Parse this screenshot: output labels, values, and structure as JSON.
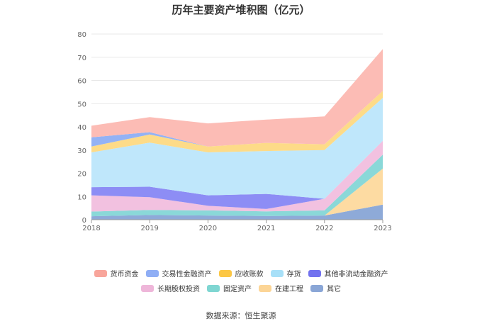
{
  "page": {
    "title": "历年主要资产堆积图（亿元）",
    "source": "数据来源：恒生聚源"
  },
  "chart_data": {
    "type": "area",
    "stacked": true,
    "title": "历年主要资产堆积图（亿元）",
    "x": [
      "2018",
      "2019",
      "2020",
      "2021",
      "2022",
      "2023"
    ],
    "yticks": [
      "0",
      "10",
      "20",
      "30",
      "40",
      "50",
      "60",
      "70",
      "80"
    ],
    "ylim": [
      0,
      80
    ],
    "grid": "horizontal",
    "legend_position": "bottom",
    "series": [
      {
        "name": "其它",
        "color": "#8eaad8",
        "values": [
          1.5,
          2.0,
          1.8,
          1.6,
          1.8,
          6.5
        ]
      },
      {
        "name": "在建工程",
        "color": "#fddba2",
        "values": [
          0.0,
          0.0,
          0.0,
          0.0,
          0.0,
          15.5
        ]
      },
      {
        "name": "固定资产",
        "color": "#8ad8d8",
        "values": [
          2.0,
          2.2,
          2.2,
          2.0,
          2.2,
          6.0
        ]
      },
      {
        "name": "长期股权投资",
        "color": "#f2c1e0",
        "values": [
          7.0,
          5.5,
          2.0,
          1.0,
          5.0,
          6.0
        ]
      },
      {
        "name": "其他非流动金融资产",
        "color": "#8d8df5",
        "values": [
          3.5,
          4.5,
          4.5,
          6.5,
          0.0,
          0.0
        ]
      },
      {
        "name": "存货",
        "color": "#bfe7fb",
        "values": [
          15.0,
          19.0,
          18.5,
          18.5,
          21.0,
          18.5
        ]
      },
      {
        "name": "应收账款",
        "color": "#fddb88",
        "values": [
          2.5,
          3.5,
          2.5,
          3.5,
          2.5,
          3.0
        ]
      },
      {
        "name": "交易性金融资产",
        "color": "#93b2f5",
        "values": [
          4.0,
          1.0,
          0.0,
          0.0,
          0.0,
          0.0
        ]
      },
      {
        "name": "货币资金",
        "color": "#fcbcb5",
        "values": [
          5.0,
          6.5,
          10.0,
          10.0,
          12.0,
          18.0
        ]
      }
    ]
  },
  "legend": {
    "rows": [
      [
        {
          "label": "货币资金",
          "color": "#f8a59b"
        },
        {
          "label": "交易性金融资产",
          "color": "#8faef5"
        },
        {
          "label": "应收账款",
          "color": "#fcc745"
        },
        {
          "label": "存货",
          "color": "#a8e0f8"
        },
        {
          "label": "其他非流动金融资产",
          "color": "#7272ef"
        }
      ],
      [
        {
          "label": "长期股权投资",
          "color": "#eeb6d9"
        },
        {
          "label": "固定资产",
          "color": "#7fd6d2"
        },
        {
          "label": "在建工程",
          "color": "#fcd596"
        },
        {
          "label": "其它",
          "color": "#8aa6d6"
        }
      ]
    ]
  }
}
